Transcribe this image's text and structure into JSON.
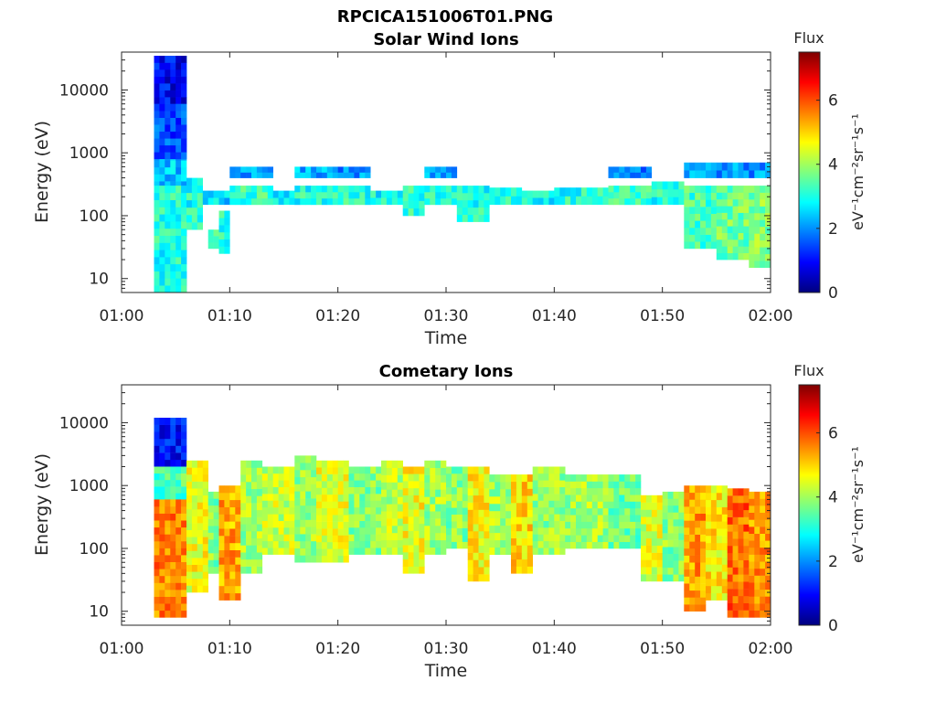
{
  "figure": {
    "title_line1": "RPCICA151006T01.PNG"
  },
  "colorbar": {
    "label": "Flux",
    "units": "eV⁻¹cm⁻²sr⁻¹s⁻¹",
    "range": [
      0,
      7.5
    ],
    "ticks": [
      "0",
      "2",
      "4",
      "6"
    ],
    "colormap": "jet",
    "colors": [
      "#00007f",
      "#0000ff",
      "#007fff",
      "#00ffff",
      "#7fff7f",
      "#ffff00",
      "#ff7f00",
      "#ff0000",
      "#7f0000"
    ]
  },
  "chart_data": [
    {
      "type": "heatmap",
      "title": "Solar Wind Ions",
      "xlabel": "Time",
      "ylabel": "Energy (eV)",
      "yscale": "log",
      "ylim": [
        6,
        40000
      ],
      "xlim": [
        "01:00",
        "02:00"
      ],
      "x_ticks": [
        "01:00",
        "01:10",
        "01:20",
        "01:30",
        "01:40",
        "01:50",
        "02:00"
      ],
      "y_ticks": [
        "10",
        "100",
        "1000",
        "10000"
      ],
      "bands": [
        {
          "t0": 3,
          "t1": 6,
          "e0": 6,
          "e1": 35000,
          "flux": 2.4
        },
        {
          "t0": 3,
          "t1": 6,
          "e0": 6000,
          "e1": 35000,
          "flux": 0.9
        },
        {
          "t0": 3,
          "t1": 6,
          "e0": 800,
          "e1": 6000,
          "flux": 1.5
        },
        {
          "t0": 3,
          "t1": 6,
          "e0": 6,
          "e1": 300,
          "flux": 3.0
        },
        {
          "t0": 6,
          "t1": 7.5,
          "e0": 60,
          "e1": 400,
          "flux": 3.0
        },
        {
          "t0": 7.5,
          "t1": 10,
          "e0": 150,
          "e1": 250,
          "flux": 2.6
        },
        {
          "t0": 8,
          "t1": 9,
          "e0": 30,
          "e1": 60,
          "flux": 3.4
        },
        {
          "t0": 9,
          "t1": 10,
          "e0": 25,
          "e1": 120,
          "flux": 3.1
        },
        {
          "t0": 10,
          "t1": 14,
          "e0": 150,
          "e1": 300,
          "flux": 3.2
        },
        {
          "t0": 10,
          "t1": 14,
          "e0": 400,
          "e1": 600,
          "flux": 2.2
        },
        {
          "t0": 14,
          "t1": 16,
          "e0": 150,
          "e1": 250,
          "flux": 2.8
        },
        {
          "t0": 16,
          "t1": 19,
          "e0": 150,
          "e1": 300,
          "flux": 3.0
        },
        {
          "t0": 16,
          "t1": 19,
          "e0": 400,
          "e1": 600,
          "flux": 2.2
        },
        {
          "t0": 19,
          "t1": 23,
          "e0": 150,
          "e1": 300,
          "flux": 3.1
        },
        {
          "t0": 19,
          "t1": 23,
          "e0": 400,
          "e1": 600,
          "flux": 2.0
        },
        {
          "t0": 23,
          "t1": 26,
          "e0": 150,
          "e1": 250,
          "flux": 2.9
        },
        {
          "t0": 26,
          "t1": 28,
          "e0": 100,
          "e1": 300,
          "flux": 3.1
        },
        {
          "t0": 28,
          "t1": 31,
          "e0": 150,
          "e1": 300,
          "flux": 3.2
        },
        {
          "t0": 28,
          "t1": 31,
          "e0": 400,
          "e1": 600,
          "flux": 2.3
        },
        {
          "t0": 31,
          "t1": 34,
          "e0": 80,
          "e1": 300,
          "flux": 3.0
        },
        {
          "t0": 34,
          "t1": 37,
          "e0": 150,
          "e1": 280,
          "flux": 3.2
        },
        {
          "t0": 37,
          "t1": 40,
          "e0": 150,
          "e1": 250,
          "flux": 2.8
        },
        {
          "t0": 40,
          "t1": 45,
          "e0": 150,
          "e1": 280,
          "flux": 3.0
        },
        {
          "t0": 45,
          "t1": 49,
          "e0": 150,
          "e1": 300,
          "flux": 3.2
        },
        {
          "t0": 45,
          "t1": 49,
          "e0": 400,
          "e1": 600,
          "flux": 1.8
        },
        {
          "t0": 49,
          "t1": 52,
          "e0": 150,
          "e1": 350,
          "flux": 3.0
        },
        {
          "t0": 52,
          "t1": 55,
          "e0": 30,
          "e1": 300,
          "flux": 3.3
        },
        {
          "t0": 55,
          "t1": 58,
          "e0": 20,
          "e1": 300,
          "flux": 3.6
        },
        {
          "t0": 58,
          "t1": 60,
          "e0": 15,
          "e1": 300,
          "flux": 3.8
        },
        {
          "t0": 52,
          "t1": 60,
          "e0": 400,
          "e1": 700,
          "flux": 2.0
        }
      ]
    },
    {
      "type": "heatmap",
      "title": "Cometary Ions",
      "xlabel": "Time",
      "ylabel": "Energy (eV)",
      "yscale": "log",
      "ylim": [
        6,
        40000
      ],
      "xlim": [
        "01:00",
        "02:00"
      ],
      "x_ticks": [
        "01:00",
        "01:10",
        "01:20",
        "01:30",
        "01:40",
        "01:50",
        "02:00"
      ],
      "y_ticks": [
        "10",
        "100",
        "1000",
        "10000"
      ],
      "bands": [
        {
          "t0": 3,
          "t1": 6,
          "e0": 2000,
          "e1": 12000,
          "flux": 1.0
        },
        {
          "t0": 3,
          "t1": 6,
          "e0": 600,
          "e1": 2000,
          "flux": 3.4
        },
        {
          "t0": 3,
          "t1": 6,
          "e0": 8,
          "e1": 600,
          "flux": 5.6
        },
        {
          "t0": 6,
          "t1": 8,
          "e0": 20,
          "e1": 2500,
          "flux": 4.6
        },
        {
          "t0": 8,
          "t1": 9,
          "e0": 40,
          "e1": 800,
          "flux": 3.8
        },
        {
          "t0": 9,
          "t1": 11,
          "e0": 15,
          "e1": 1000,
          "flux": 5.3
        },
        {
          "t0": 11,
          "t1": 13,
          "e0": 40,
          "e1": 2500,
          "flux": 4.0
        },
        {
          "t0": 13,
          "t1": 16,
          "e0": 80,
          "e1": 2000,
          "flux": 4.3
        },
        {
          "t0": 16,
          "t1": 18,
          "e0": 60,
          "e1": 3000,
          "flux": 3.9
        },
        {
          "t0": 18,
          "t1": 21,
          "e0": 60,
          "e1": 2500,
          "flux": 4.5
        },
        {
          "t0": 21,
          "t1": 24,
          "e0": 80,
          "e1": 2000,
          "flux": 3.8
        },
        {
          "t0": 24,
          "t1": 26,
          "e0": 80,
          "e1": 2500,
          "flux": 4.2
        },
        {
          "t0": 26,
          "t1": 28,
          "e0": 40,
          "e1": 2000,
          "flux": 4.6
        },
        {
          "t0": 28,
          "t1": 30,
          "e0": 80,
          "e1": 2500,
          "flux": 4.0
        },
        {
          "t0": 30,
          "t1": 32,
          "e0": 100,
          "e1": 2000,
          "flux": 3.8
        },
        {
          "t0": 32,
          "t1": 34,
          "e0": 30,
          "e1": 2000,
          "flux": 4.7
        },
        {
          "t0": 34,
          "t1": 36,
          "e0": 80,
          "e1": 1500,
          "flux": 4.0
        },
        {
          "t0": 36,
          "t1": 38,
          "e0": 40,
          "e1": 1500,
          "flux": 4.9
        },
        {
          "t0": 38,
          "t1": 41,
          "e0": 80,
          "e1": 2000,
          "flux": 3.9
        },
        {
          "t0": 41,
          "t1": 45,
          "e0": 100,
          "e1": 1500,
          "flux": 4.0
        },
        {
          "t0": 45,
          "t1": 48,
          "e0": 100,
          "e1": 1500,
          "flux": 3.6
        },
        {
          "t0": 48,
          "t1": 50,
          "e0": 30,
          "e1": 700,
          "flux": 4.4
        },
        {
          "t0": 50,
          "t1": 52,
          "e0": 30,
          "e1": 800,
          "flux": 3.8
        },
        {
          "t0": 52,
          "t1": 54,
          "e0": 10,
          "e1": 1000,
          "flux": 5.4
        },
        {
          "t0": 54,
          "t1": 56,
          "e0": 15,
          "e1": 1000,
          "flux": 4.8
        },
        {
          "t0": 56,
          "t1": 58,
          "e0": 8,
          "e1": 900,
          "flux": 5.8
        },
        {
          "t0": 58,
          "t1": 60,
          "e0": 8,
          "e1": 800,
          "flux": 5.5
        }
      ]
    }
  ]
}
